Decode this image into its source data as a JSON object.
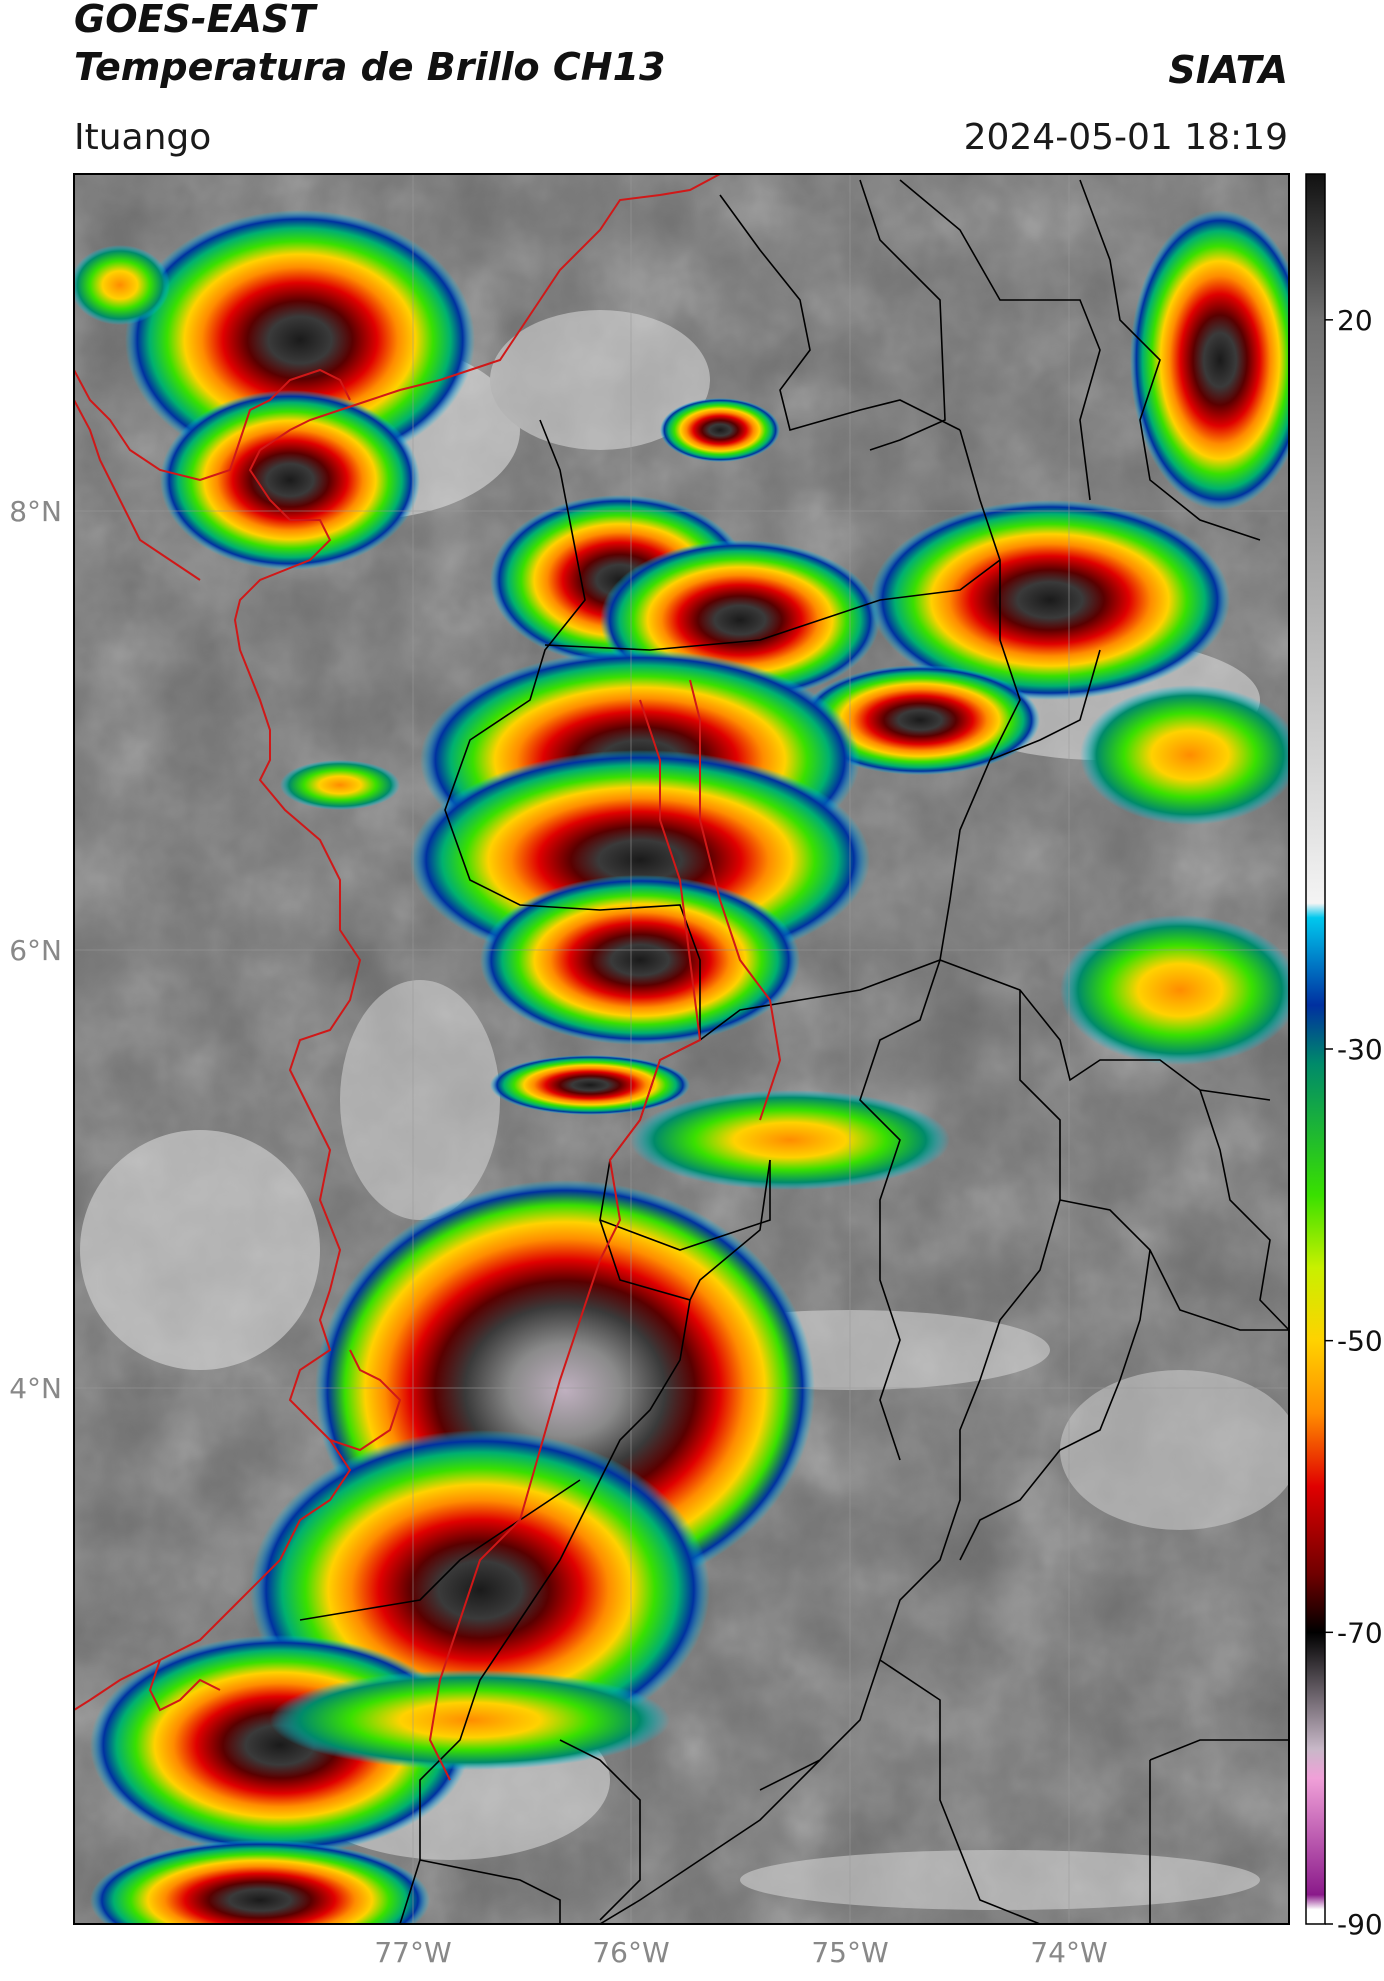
{
  "header": {
    "satellite": "GOES-EAST",
    "product": "Temperatura de Brillo CH13",
    "org": "SIATA",
    "location": "Ituango",
    "datetime": "2024-05-01 18:19"
  },
  "map": {
    "lat_labels": [
      "8°N",
      "6°N",
      "4°N"
    ],
    "lon_labels": [
      "77°W",
      "76°W",
      "75°W",
      "74°W"
    ],
    "background_color": "#6e6e6e",
    "coast_color": "#d01818",
    "admin_border_color": "#000000"
  },
  "colorbar": {
    "range": [
      -90,
      30
    ],
    "ticks": [
      "20",
      "-30",
      "-50",
      "-70",
      "-90"
    ],
    "tick_values": [
      20,
      -30,
      -50,
      -70,
      -90
    ],
    "stops": [
      {
        "v": 30,
        "c": "#111111"
      },
      {
        "v": 20,
        "c": "#707070"
      },
      {
        "v": -20,
        "c": "#f4f4f4"
      },
      {
        "v": -21,
        "c": "#00c8ee"
      },
      {
        "v": -27,
        "c": "#0030a0"
      },
      {
        "v": -31,
        "c": "#008a6a"
      },
      {
        "v": -40,
        "c": "#39e000"
      },
      {
        "v": -45,
        "c": "#c8f000"
      },
      {
        "v": -50,
        "c": "#ffd200"
      },
      {
        "v": -55,
        "c": "#ff8c00"
      },
      {
        "v": -60,
        "c": "#e00000"
      },
      {
        "v": -66,
        "c": "#700000"
      },
      {
        "v": -70,
        "c": "#000000"
      },
      {
        "v": -78,
        "c": "#c8b8c8"
      },
      {
        "v": -80,
        "c": "#f0a0d8"
      },
      {
        "v": -88,
        "c": "#8a1a8a"
      },
      {
        "v": -89,
        "c": "#ffffff"
      },
      {
        "v": -90,
        "c": "#ffffff"
      }
    ]
  }
}
